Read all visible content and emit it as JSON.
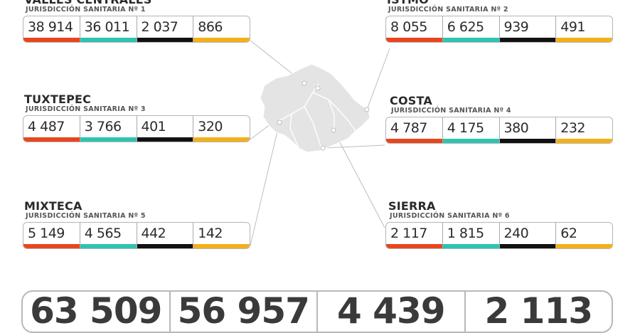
{
  "regions": [
    {
      "name": "VALLES CENTRALES",
      "subtitle": "JURISDICCIÓN SANITARIA Nº 1",
      "values": [
        "38 914",
        "36 011",
        "2 037",
        "866"
      ]
    },
    {
      "name": "ISTMO",
      "subtitle": "JURISDICCIÓN SANITARIA Nº 2",
      "values": [
        "8 055",
        "6 625",
        "939",
        "491"
      ]
    },
    {
      "name": "TUXTEPEC",
      "subtitle": "JURISDICCIÓN SANITARIA Nº 3",
      "values": [
        "4 487",
        "3 766",
        "401",
        "320"
      ]
    },
    {
      "name": "COSTA",
      "subtitle": "JURISDICCIÓN SANITARIA Nº 4",
      "values": [
        "4 787",
        "4 175",
        "380",
        "232"
      ]
    },
    {
      "name": "MIXTECA",
      "subtitle": "JURISDICCIÓN SANITARIA Nº 5",
      "values": [
        "5 149",
        "4 565",
        "442",
        "142"
      ]
    },
    {
      "name": "SIERRA",
      "subtitle": "JURISDICCIÓN SANITARIA Nº 6",
      "values": [
        "2 117",
        "1 815",
        "240",
        "62"
      ]
    }
  ],
  "totals": [
    "63 509",
    "56 957",
    "4 439",
    "2 113"
  ],
  "colors": {
    "bar_1": "#e8461e",
    "bar_2": "#2ec4b0",
    "bar_3": "#111111",
    "bar_4": "#f3b01a",
    "map_fill": "#e4e4e4",
    "map_border": "#ffffff",
    "connector": "#bdbdbd"
  }
}
